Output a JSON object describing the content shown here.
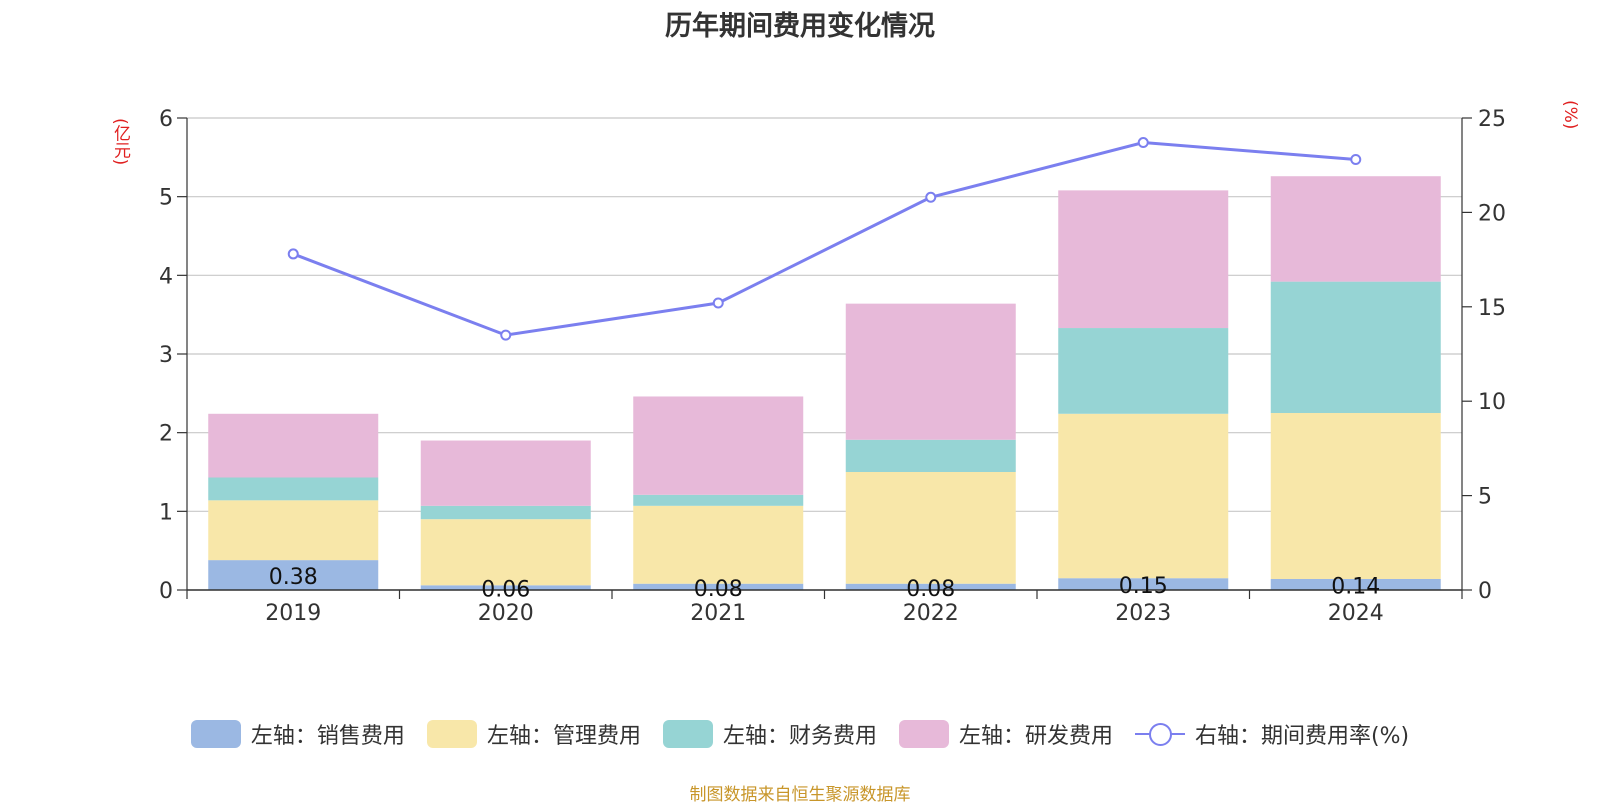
{
  "chart_data": {
    "type": "bar",
    "title": "历年期间费用变化情况",
    "left_unit": "(亿元)",
    "right_unit": "(%)",
    "categories": [
      "2019",
      "2020",
      "2021",
      "2022",
      "2023",
      "2024"
    ],
    "ylim_left": [
      0,
      6
    ],
    "yticks_left": [
      0,
      1,
      2,
      3,
      4,
      5,
      6
    ],
    "ylim_right": [
      0,
      25
    ],
    "yticks_right": [
      0,
      5,
      10,
      15,
      20,
      25
    ],
    "grid": true,
    "legend_position": "bottom",
    "series": [
      {
        "name": "左轴：销售费用",
        "type": "bar",
        "axis": "left",
        "color": "#9bb8e3",
        "values": [
          0.38,
          0.06,
          0.08,
          0.08,
          0.15,
          0.14
        ],
        "labels": [
          "0.38",
          "0.06",
          "0.08",
          "0.08",
          "0.15",
          "0.14"
        ]
      },
      {
        "name": "左轴：管理费用",
        "type": "bar",
        "axis": "left",
        "color": "#f8e7a9",
        "values": [
          0.76,
          0.84,
          0.99,
          1.42,
          2.09,
          2.11
        ]
      },
      {
        "name": "左轴：财务费用",
        "type": "bar",
        "axis": "left",
        "color": "#96d4d4",
        "values": [
          0.29,
          0.17,
          0.14,
          0.41,
          1.09,
          1.67
        ]
      },
      {
        "name": "左轴：研发费用",
        "type": "bar",
        "axis": "left",
        "color": "#e7b9d9",
        "values": [
          0.81,
          0.83,
          1.25,
          1.73,
          1.75,
          1.34
        ]
      },
      {
        "name": "右轴：期间费用率(%)",
        "type": "line",
        "axis": "right",
        "color": "#7b7fef",
        "values": [
          17.8,
          13.5,
          15.2,
          20.8,
          23.7,
          22.8
        ]
      }
    ]
  },
  "source": "制图数据来自恒生聚源数据库"
}
